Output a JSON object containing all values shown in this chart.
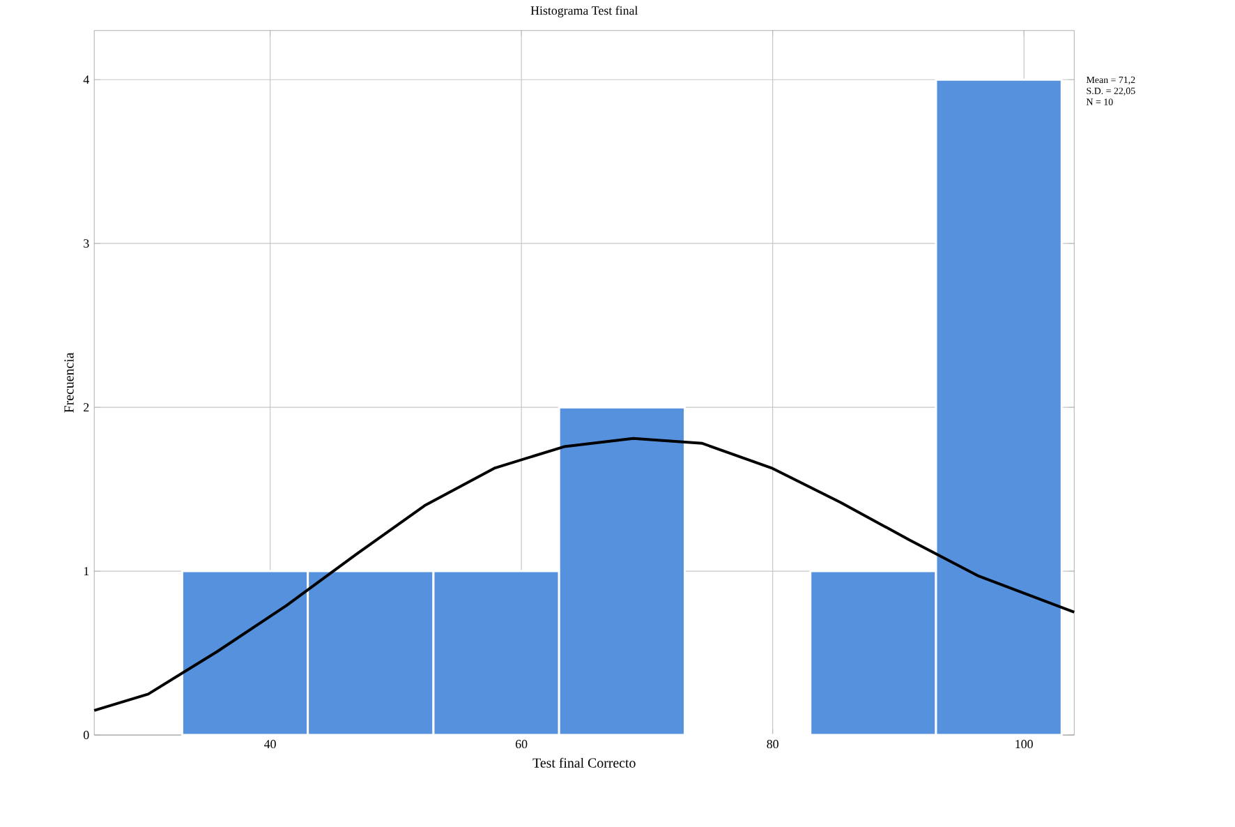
{
  "chart_data": {
    "type": "histogram",
    "title": "Histograma Test final",
    "xlabel": "Test final Correcto",
    "ylabel": "Frecuencia",
    "bins": [
      33,
      43,
      53,
      63,
      73,
      83,
      93,
      103
    ],
    "values": [
      1,
      1,
      1,
      2,
      0,
      1,
      4
    ],
    "color": "#5591dc",
    "series": [
      {
        "type": "line",
        "color": "#000000",
        "x": [
          26.0,
          30.3,
          35.8,
          41.3,
          46.8,
          52.3,
          57.9,
          63.4,
          68.9,
          74.4,
          79.9,
          85.4,
          90.9,
          96.4,
          104.0
        ],
        "values": [
          0.15,
          0.25,
          0.51,
          0.79,
          1.1,
          1.4,
          1.63,
          1.76,
          1.81,
          1.78,
          1.63,
          1.42,
          1.19,
          0.97,
          0.75
        ]
      }
    ],
    "xlim": [
      26,
      104
    ],
    "ylim": [
      0,
      4.3
    ],
    "xticks": [
      40,
      60,
      80,
      100
    ],
    "yticks": [
      0,
      1,
      2,
      3,
      4
    ],
    "grid": true,
    "annotations": [
      "Mean = 71,2",
      "S.D. = 22,05",
      "N = 10"
    ]
  }
}
